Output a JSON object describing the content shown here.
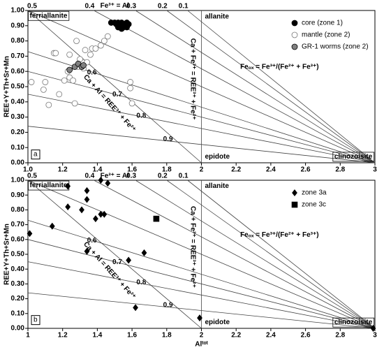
{
  "chart_data": [
    {
      "type": "scatter",
      "panel_label": "a",
      "y_label": "REE+Y+Th+Sr+Mn",
      "xlim": [
        1,
        3
      ],
      "ylim": [
        0,
        1
      ],
      "xticks": [
        {
          "value": 1,
          "label": "1.0"
        },
        1.2,
        1.4,
        1.6,
        1.8,
        2,
        2.2,
        2.4,
        2.6,
        2.8,
        3
      ],
      "yticks": [
        {
          "value": 0,
          "label": "0.00"
        },
        {
          "value": 0.1,
          "label": "0.10"
        },
        {
          "value": 0.2,
          "label": "0.20"
        },
        {
          "value": 0.3,
          "label": "0.30"
        },
        {
          "value": 0.4,
          "label": "0.40"
        },
        {
          "value": 0.5,
          "label": "0.50"
        },
        {
          "value": 0.6,
          "label": "0.60"
        },
        {
          "value": 0.7,
          "label": "0.70"
        },
        {
          "value": 0.8,
          "label": "0.80"
        },
        {
          "value": 0.9,
          "label": "0.90"
        },
        {
          "value": 1,
          "label": "1.00"
        }
      ],
      "series": [
        {
          "name": "core (zone 1)",
          "color": "#000000",
          "marker": "circle",
          "filled": true,
          "x": [
            1.48,
            1.51,
            1.52,
            1.53,
            1.54,
            1.55,
            1.56,
            1.57,
            1.58,
            1.52,
            1.55,
            1.54,
            1.57,
            1.5
          ],
          "values": [
            0.92,
            0.91,
            0.92,
            0.9,
            0.92,
            0.91,
            0.9,
            0.92,
            0.91,
            0.89,
            0.89,
            0.88,
            0.89,
            0.92
          ]
        },
        {
          "name": "mantle (zone 2)",
          "color": "#777777",
          "marker": "circle",
          "filled": false,
          "x": [
            1.02,
            1.09,
            1.12,
            1.1,
            1.15,
            1.16,
            1.21,
            1.23,
            1.24,
            1.27,
            1.28,
            1.29,
            1.32,
            1.33,
            1.37,
            1.39,
            1.42,
            1.44,
            1.46,
            1.59,
            1.59,
            1.6,
            1.24,
            1.26,
            1.34,
            1.3,
            1.18,
            1.36
          ],
          "values": [
            0.53,
            0.48,
            0.38,
            0.53,
            0.72,
            0.72,
            0.54,
            0.6,
            0.71,
            0.39,
            0.8,
            0.63,
            0.62,
            0.74,
            0.75,
            0.75,
            0.77,
            0.8,
            0.83,
            0.53,
            0.49,
            0.39,
            0.56,
            0.54,
            0.66,
            0.68,
            0.45,
            0.71
          ]
        },
        {
          "name": "GR-1 worms (zone 2)",
          "color": "#808080",
          "marker": "circle",
          "filled": true,
          "x": [
            1.24,
            1.27,
            1.29,
            1.31,
            1.32
          ],
          "values": [
            0.61,
            0.63,
            0.65,
            0.63,
            0.64
          ]
        }
      ],
      "reference_lines": [
        {
          "x": [
            3,
            1
          ],
          "y": [
            0,
            1
          ],
          "label": "0.5"
        },
        {
          "x": [
            3,
            1.38
          ],
          "y": [
            0,
            1
          ],
          "label": "0.4"
        },
        {
          "x": [
            3,
            1.62
          ],
          "y": [
            0,
            1
          ],
          "label": "0.3"
        },
        {
          "x": [
            3,
            1.8
          ],
          "y": [
            0,
            1
          ],
          "label": "0.2"
        },
        {
          "x": [
            3,
            1.92
          ],
          "y": [
            0,
            1
          ],
          "label": "0.1"
        },
        {
          "x": [
            3,
            1
          ],
          "y": [
            0,
            0.73
          ],
          "label": "0.6"
        },
        {
          "x": [
            3,
            1
          ],
          "y": [
            0,
            0.6
          ],
          "label": "0.7"
        },
        {
          "x": [
            3,
            1
          ],
          "y": [
            0,
            0.45
          ],
          "label": "0.8"
        },
        {
          "x": [
            3,
            1
          ],
          "y": [
            0,
            0.24
          ],
          "label": "0.9"
        },
        {
          "x": [
            1,
            2
          ],
          "y": [
            1,
            0
          ]
        },
        {
          "x": [
            2,
            2
          ],
          "y": [
            0,
            1
          ]
        }
      ],
      "annotations": [
        "ferriallanite",
        "allanite",
        "epidote",
        "clinozoisite",
        "Fe³⁺ = Al",
        "Ca + Fe³⁺ = REE³⁺ + Fe²⁺",
        "Ca + Al = REE³⁺ + Fe²⁺",
        "Feₒₓ = Fe³⁺/(Fe²⁺ + Fe³⁺)"
      ]
    },
    {
      "type": "scatter",
      "panel_label": "b",
      "y_label": "REE+Y+Th+Sr+Mn",
      "x_label": "Alᵗᵒᵗ",
      "xlim": [
        1,
        3
      ],
      "ylim": [
        0,
        1
      ],
      "xticks": [
        1,
        1.2,
        1.4,
        1.6,
        1.8,
        2,
        2.2,
        2.4,
        2.6,
        2.8,
        3
      ],
      "yticks": [
        {
          "value": 0,
          "label": "0.00"
        },
        {
          "value": 0.1,
          "label": "0.10"
        },
        {
          "value": 0.2,
          "label": "0.20"
        },
        {
          "value": 0.3,
          "label": "0.30"
        },
        {
          "value": 0.4,
          "label": "0.40"
        },
        {
          "value": 0.5,
          "label": "0.50"
        },
        {
          "value": 0.6,
          "label": "0.60"
        },
        {
          "value": 0.7,
          "label": "0.70"
        },
        {
          "value": 0.8,
          "label": "0.80"
        },
        {
          "value": 0.9,
          "label": "0.90"
        },
        {
          "value": 1,
          "label": "1.00"
        }
      ],
      "series": [
        {
          "name": "zone 3a",
          "color": "#000000",
          "marker": "diamond",
          "filled": true,
          "x": [
            1.01,
            1.14,
            1.23,
            1.23,
            1.31,
            1.34,
            1.34,
            1.42,
            1.46,
            1.39,
            1.42,
            1.44,
            1.34,
            1.58,
            1.67,
            1.62,
            1.99,
            2.99
          ],
          "values": [
            0.64,
            0.69,
            0.96,
            0.82,
            0.8,
            0.93,
            0.87,
            1.0,
            0.98,
            0.74,
            0.77,
            0.77,
            0.52,
            0.46,
            0.51,
            0.14,
            0.07,
            0.0
          ]
        },
        {
          "name": "zone 3c",
          "color": "#000000",
          "marker": "square",
          "filled": true,
          "x": [
            1.74
          ],
          "values": [
            0.74
          ]
        }
      ],
      "reference_lines": [
        {
          "x": [
            3,
            1
          ],
          "y": [
            0,
            1
          ],
          "label": "0.5"
        },
        {
          "x": [
            3,
            1.38
          ],
          "y": [
            0,
            1
          ],
          "label": "0.4"
        },
        {
          "x": [
            3,
            1.62
          ],
          "y": [
            0,
            1
          ],
          "label": "0.3"
        },
        {
          "x": [
            3,
            1.8
          ],
          "y": [
            0,
            1
          ],
          "label": "0.2"
        },
        {
          "x": [
            3,
            1.92
          ],
          "y": [
            0,
            1
          ],
          "label": "0.1"
        },
        {
          "x": [
            3,
            1
          ],
          "y": [
            0,
            0.73
          ],
          "label": "0.6"
        },
        {
          "x": [
            3,
            1
          ],
          "y": [
            0,
            0.6
          ],
          "label": "0.7"
        },
        {
          "x": [
            3,
            1
          ],
          "y": [
            0,
            0.45
          ],
          "label": "0.8"
        },
        {
          "x": [
            3,
            1
          ],
          "y": [
            0,
            0.24
          ],
          "label": "0.9"
        },
        {
          "x": [
            1,
            2
          ],
          "y": [
            1,
            0
          ]
        },
        {
          "x": [
            2,
            2
          ],
          "y": [
            0,
            1
          ]
        }
      ],
      "annotations": [
        "ferriallanite",
        "allanite",
        "epidote",
        "clinozoisite",
        "Fe³⁺ = Al",
        "Ca + Fe³⁺ = REE³⁺ + Fe²⁺",
        "Ca + Al = REE³⁺ + Fe²⁺",
        "Feₒₓ = Fe³⁺/(Fe²⁺ + Fe³⁺)"
      ]
    }
  ]
}
